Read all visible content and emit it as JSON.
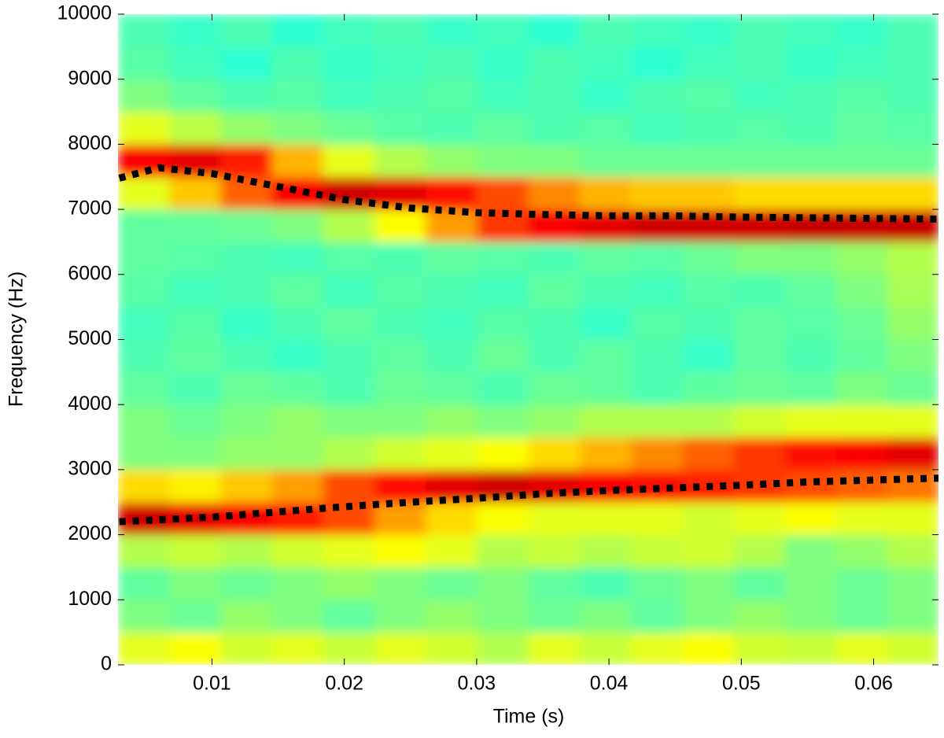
{
  "chart_data": {
    "type": "heatmap",
    "xlabel": "Time (s)",
    "ylabel": "Frequency (Hz)",
    "colormap": "jet",
    "xlim": [
      0.0029,
      0.0649
    ],
    "ylim": [
      0,
      10000
    ],
    "xticks": [
      0.01,
      0.02,
      0.03,
      0.04,
      0.05,
      0.06
    ],
    "yticks": [
      0,
      1000,
      2000,
      3000,
      4000,
      5000,
      6000,
      7000,
      8000,
      9000,
      10000
    ],
    "grid": false,
    "z": [
      [
        0.6,
        0.62,
        0.58,
        0.6,
        0.57,
        0.6,
        0.58,
        0.55,
        0.6,
        0.57,
        0.6,
        0.62,
        0.58,
        0.57,
        0.6,
        0.58
      ],
      [
        0.5,
        0.48,
        0.52,
        0.5,
        0.47,
        0.5,
        0.52,
        0.5,
        0.48,
        0.5,
        0.47,
        0.5,
        0.52,
        0.5,
        0.48,
        0.5
      ],
      [
        0.47,
        0.5,
        0.48,
        0.5,
        0.52,
        0.5,
        0.48,
        0.5,
        0.47,
        0.45,
        0.48,
        0.5,
        0.47,
        0.5,
        0.48,
        0.5
      ],
      [
        0.55,
        0.57,
        0.55,
        0.58,
        0.6,
        0.62,
        0.6,
        0.55,
        0.57,
        0.55,
        0.57,
        0.58,
        0.55,
        0.5,
        0.52,
        0.55
      ],
      [
        0.92,
        0.9,
        0.88,
        0.85,
        0.8,
        0.72,
        0.66,
        0.62,
        0.6,
        0.6,
        0.6,
        0.58,
        0.6,
        0.62,
        0.6,
        0.6
      ],
      [
        0.66,
        0.64,
        0.68,
        0.72,
        0.8,
        0.86,
        0.9,
        0.92,
        0.9,
        0.88,
        0.86,
        0.84,
        0.82,
        0.8,
        0.78,
        0.76
      ],
      [
        0.5,
        0.5,
        0.52,
        0.52,
        0.55,
        0.58,
        0.6,
        0.62,
        0.66,
        0.7,
        0.74,
        0.78,
        0.82,
        0.86,
        0.88,
        0.9
      ],
      [
        0.5,
        0.48,
        0.5,
        0.52,
        0.5,
        0.5,
        0.52,
        0.5,
        0.52,
        0.55,
        0.55,
        0.55,
        0.58,
        0.6,
        0.6,
        0.6
      ],
      [
        0.47,
        0.45,
        0.48,
        0.47,
        0.45,
        0.48,
        0.47,
        0.45,
        0.48,
        0.47,
        0.45,
        0.47,
        0.48,
        0.47,
        0.5,
        0.48
      ],
      [
        0.45,
        0.47,
        0.45,
        0.43,
        0.45,
        0.47,
        0.45,
        0.48,
        0.45,
        0.47,
        0.45,
        0.43,
        0.47,
        0.45,
        0.47,
        0.5
      ],
      [
        0.44,
        0.46,
        0.43,
        0.45,
        0.47,
        0.45,
        0.44,
        0.46,
        0.45,
        0.43,
        0.46,
        0.45,
        0.47,
        0.46,
        0.48,
        0.52
      ],
      [
        0.46,
        0.44,
        0.45,
        0.47,
        0.44,
        0.46,
        0.45,
        0.44,
        0.47,
        0.45,
        0.44,
        0.46,
        0.45,
        0.47,
        0.5,
        0.54
      ],
      [
        0.47,
        0.46,
        0.45,
        0.44,
        0.46,
        0.45,
        0.47,
        0.46,
        0.45,
        0.47,
        0.46,
        0.48,
        0.5,
        0.5,
        0.52,
        0.55
      ],
      [
        0.47,
        0.47,
        0.48,
        0.5,
        0.55,
        0.62,
        0.72,
        0.82,
        0.88,
        0.9,
        0.92,
        0.92,
        0.92,
        0.93,
        0.93,
        0.93
      ],
      [
        0.6,
        0.68,
        0.78,
        0.88,
        0.92,
        0.9,
        0.86,
        0.8,
        0.74,
        0.7,
        0.68,
        0.68,
        0.66,
        0.66,
        0.66,
        0.66
      ],
      [
        0.88,
        0.9,
        0.85,
        0.7,
        0.6,
        0.55,
        0.52,
        0.5,
        0.5,
        0.48,
        0.48,
        0.48,
        0.48,
        0.48,
        0.48,
        0.48
      ],
      [
        0.6,
        0.56,
        0.52,
        0.5,
        0.48,
        0.46,
        0.45,
        0.47,
        0.45,
        0.46,
        0.44,
        0.45,
        0.46,
        0.45,
        0.47,
        0.46
      ],
      [
        0.5,
        0.47,
        0.45,
        0.46,
        0.44,
        0.45,
        0.46,
        0.44,
        0.45,
        0.43,
        0.45,
        0.46,
        0.44,
        0.45,
        0.46,
        0.45
      ],
      [
        0.46,
        0.44,
        0.42,
        0.45,
        0.43,
        0.44,
        0.45,
        0.43,
        0.45,
        0.44,
        0.42,
        0.44,
        0.45,
        0.43,
        0.44,
        0.45
      ],
      [
        0.45,
        0.43,
        0.45,
        0.42,
        0.44,
        0.45,
        0.43,
        0.44,
        0.42,
        0.45,
        0.44,
        0.43,
        0.45,
        0.44,
        0.43,
        0.45
      ]
    ],
    "x": [
      0.003,
      0.006,
      0.01,
      0.015,
      0.02,
      0.025,
      0.03,
      0.035,
      0.04,
      0.045,
      0.05,
      0.055,
      0.06,
      0.065
    ],
    "series": [
      {
        "color": "#000000",
        "values": [
          7480,
          7640,
          7550,
          7350,
          7150,
          7020,
          6950,
          6920,
          6900,
          6900,
          6880,
          6870,
          6860,
          6850
        ]
      },
      {
        "color": "#000000",
        "values": [
          2200,
          2230,
          2270,
          2350,
          2430,
          2500,
          2560,
          2630,
          2680,
          2720,
          2760,
          2810,
          2840,
          2870
        ]
      }
    ]
  }
}
